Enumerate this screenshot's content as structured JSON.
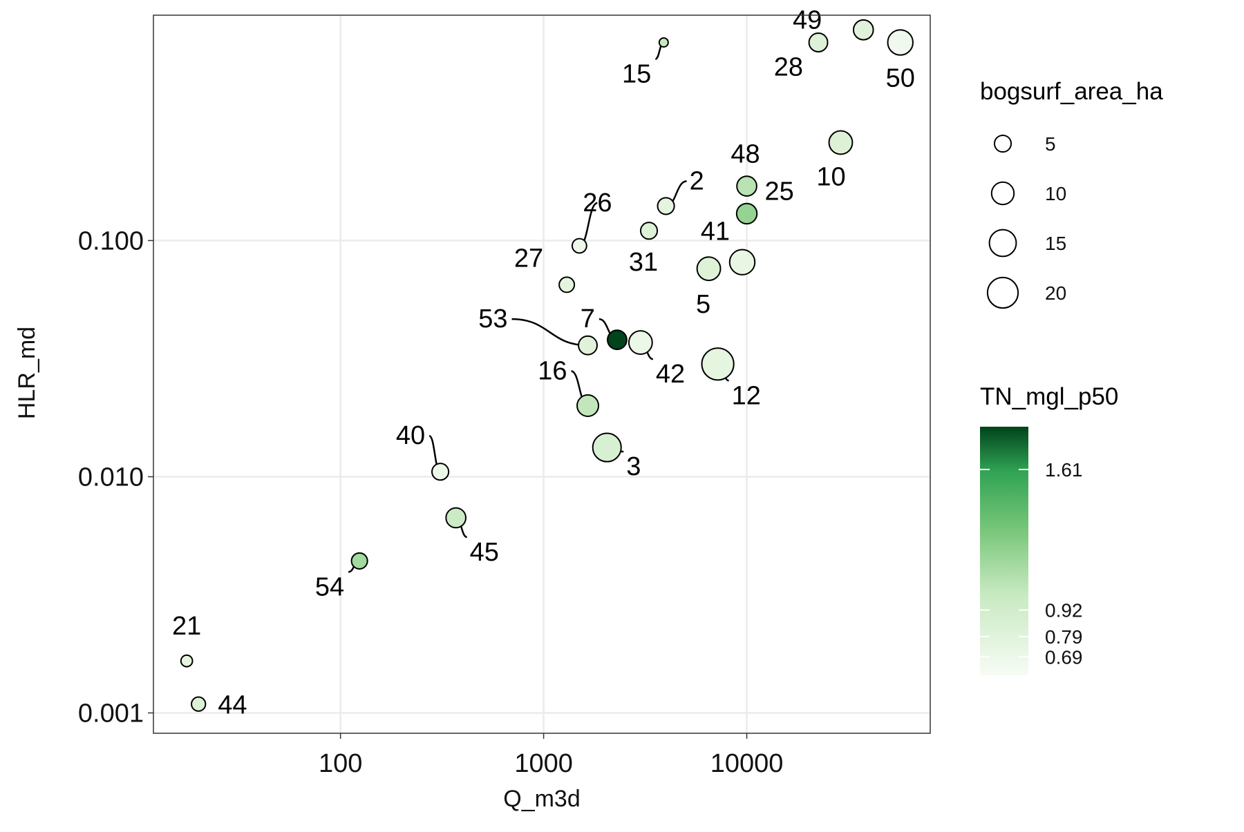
{
  "chart_data": {
    "type": "scatter",
    "xlabel": "Q_m3d",
    "ylabel": "HLR_md",
    "x_scale": "log",
    "y_scale": "log",
    "xlim": [
      12,
      80000
    ],
    "ylim": [
      0.00082,
      0.9
    ],
    "x_ticks": [
      {
        "value": 100,
        "label": "100"
      },
      {
        "value": 1000,
        "label": "1000"
      },
      {
        "value": 10000,
        "label": "10000"
      }
    ],
    "y_ticks": [
      {
        "value": 0.1,
        "label": "0.100"
      },
      {
        "value": 0.01,
        "label": "0.010"
      },
      {
        "value": 0.001,
        "label": "0.001"
      }
    ],
    "grid": true,
    "size_legend": {
      "title": "bogsurf_area_ha",
      "entries": [
        {
          "value": 5,
          "label": "5"
        },
        {
          "value": 10,
          "label": "10"
        },
        {
          "value": 15,
          "label": "15"
        },
        {
          "value": 20,
          "label": "20"
        }
      ]
    },
    "color_legend": {
      "title": "TN_mgl_p50",
      "min": 0.6,
      "max": 1.82,
      "color_low": "#f7fcf5",
      "color_high": "#00441b",
      "ticks": [
        {
          "value": 1.61,
          "label": "1.61"
        },
        {
          "value": 0.92,
          "label": "0.92"
        },
        {
          "value": 0.79,
          "label": "0.79"
        },
        {
          "value": 0.69,
          "label": "0.69"
        }
      ]
    },
    "points": [
      {
        "id": "49",
        "q": 37500,
        "hlr": 0.78,
        "area": 7.5,
        "tn": 0.78
      },
      {
        "id": "28",
        "q": 22500,
        "hlr": 0.69,
        "area": 6.5,
        "tn": 0.8
      },
      {
        "id": "50",
        "q": 57000,
        "hlr": 0.69,
        "area": 13,
        "tn": 0.66
      },
      {
        "id": "15",
        "q": 3900,
        "hlr": 0.69,
        "area": 1,
        "tn": 0.9
      },
      {
        "id": "10",
        "q": 29000,
        "hlr": 0.26,
        "area": 11,
        "tn": 0.8
      },
      {
        "id": "48",
        "q": 10000,
        "hlr": 0.17,
        "area": 7.5,
        "tn": 0.96
      },
      {
        "id": "2",
        "q": 4000,
        "hlr": 0.14,
        "area": 5,
        "tn": 0.76
      },
      {
        "id": "25",
        "q": 10000,
        "hlr": 0.13,
        "area": 8,
        "tn": 1.1
      },
      {
        "id": "26",
        "q": 1500,
        "hlr": 0.095,
        "area": 3.5,
        "tn": 0.68
      },
      {
        "id": "31",
        "q": 3300,
        "hlr": 0.11,
        "area": 5,
        "tn": 0.8
      },
      {
        "id": "41",
        "q": 9500,
        "hlr": 0.081,
        "area": 13,
        "tn": 0.72
      },
      {
        "id": "5",
        "q": 6500,
        "hlr": 0.076,
        "area": 11,
        "tn": 0.79
      },
      {
        "id": "27",
        "q": 1300,
        "hlr": 0.065,
        "area": 4,
        "tn": 0.76
      },
      {
        "id": "53",
        "q": 1650,
        "hlr": 0.036,
        "area": 6.5,
        "tn": 0.78
      },
      {
        "id": "7",
        "q": 2300,
        "hlr": 0.038,
        "area": 7,
        "tn": 1.82
      },
      {
        "id": "42",
        "q": 3000,
        "hlr": 0.037,
        "area": 11,
        "tn": 0.7
      },
      {
        "id": "12",
        "q": 7200,
        "hlr": 0.03,
        "area": 22,
        "tn": 0.75
      },
      {
        "id": "16",
        "q": 1650,
        "hlr": 0.02,
        "area": 9,
        "tn": 0.92
      },
      {
        "id": "3",
        "q": 2050,
        "hlr": 0.0133,
        "area": 17,
        "tn": 0.82
      },
      {
        "id": "40",
        "q": 310,
        "hlr": 0.0105,
        "area": 5,
        "tn": 0.69
      },
      {
        "id": "45",
        "q": 370,
        "hlr": 0.0067,
        "area": 7.5,
        "tn": 0.88
      },
      {
        "id": "54",
        "q": 124,
        "hlr": 0.0044,
        "area": 4.5,
        "tn": 1.05
      },
      {
        "id": "21",
        "q": 17.5,
        "hlr": 0.00166,
        "area": 2,
        "tn": 0.75
      },
      {
        "id": "44",
        "q": 20,
        "hlr": 0.00109,
        "area": 3.3,
        "tn": 0.8
      }
    ]
  }
}
